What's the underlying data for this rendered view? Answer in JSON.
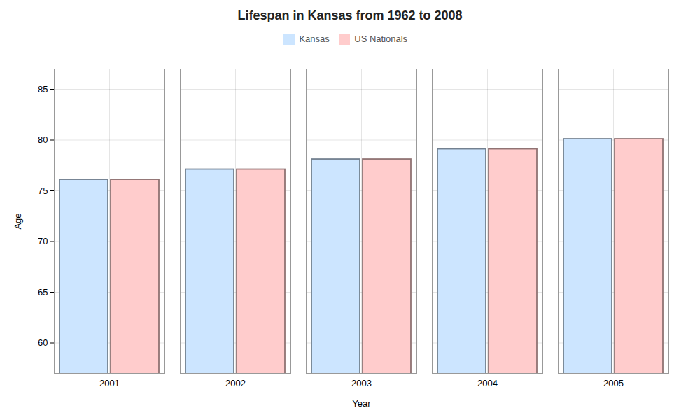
{
  "chart_data": {
    "type": "bar",
    "title": "Lifespan in Kansas from 1962 to 2008",
    "xlabel": "Year",
    "ylabel": "Age",
    "categories": [
      "2001",
      "2002",
      "2003",
      "2004",
      "2005"
    ],
    "series": [
      {
        "name": "Kansas",
        "color": "#cce5ff",
        "values": [
          76.1,
          77.1,
          78.1,
          79.1,
          80.1
        ]
      },
      {
        "name": "US Nationals",
        "color": "#ffcccc",
        "values": [
          76.1,
          77.1,
          78.1,
          79.1,
          80.1
        ]
      }
    ],
    "ylim": [
      57,
      87
    ],
    "yticks": [
      60,
      65,
      70,
      75,
      80,
      85
    ],
    "grid": true,
    "legend": "top"
  }
}
